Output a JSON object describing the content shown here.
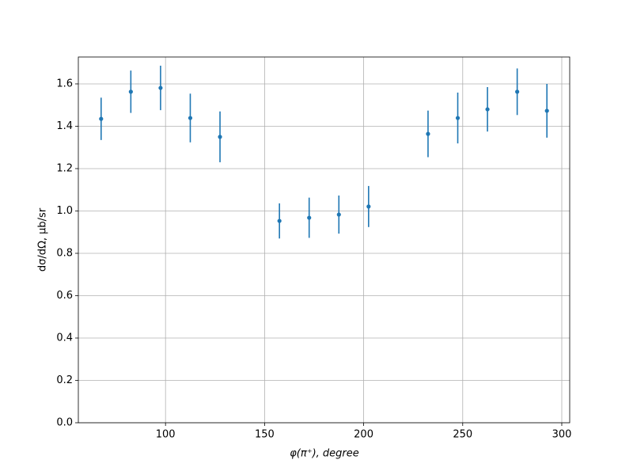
{
  "chart_data": {
    "type": "errorbar",
    "xlabel": "φ(π⁺), degree",
    "ylabel": "dσ/dΩ, μb/sr",
    "x": [
      67.5,
      82.5,
      97.5,
      112.5,
      127.5,
      157.5,
      172.5,
      187.5,
      202.5,
      232.5,
      247.5,
      262.5,
      277.5,
      292.5
    ],
    "values": [
      1.435,
      1.563,
      1.581,
      1.439,
      1.35,
      0.953,
      0.968,
      0.983,
      1.021,
      1.364,
      1.439,
      1.48,
      1.563,
      1.473
    ],
    "errors": [
      0.1,
      0.1,
      0.105,
      0.115,
      0.12,
      0.083,
      0.095,
      0.09,
      0.097,
      0.11,
      0.12,
      0.105,
      0.11,
      0.127
    ],
    "color": "#1f77b4",
    "xlim": [
      56,
      304
    ],
    "ylim": [
      0,
      1.727
    ],
    "xticks": [
      100,
      150,
      200,
      250,
      300
    ],
    "yticks": [
      {
        "value": 0,
        "label": "0.0"
      },
      {
        "value": 0.2,
        "label": "0.2"
      },
      {
        "value": 0.4,
        "label": "0.4"
      },
      {
        "value": 0.6,
        "label": "0.6"
      },
      {
        "value": 0.8,
        "label": "0.8"
      },
      {
        "value": 1,
        "label": "1.0"
      },
      {
        "value": 1.2,
        "label": "1.2"
      },
      {
        "value": 1.4,
        "label": "1.4"
      },
      {
        "value": 1.6,
        "label": "1.6"
      }
    ],
    "grid": true
  }
}
